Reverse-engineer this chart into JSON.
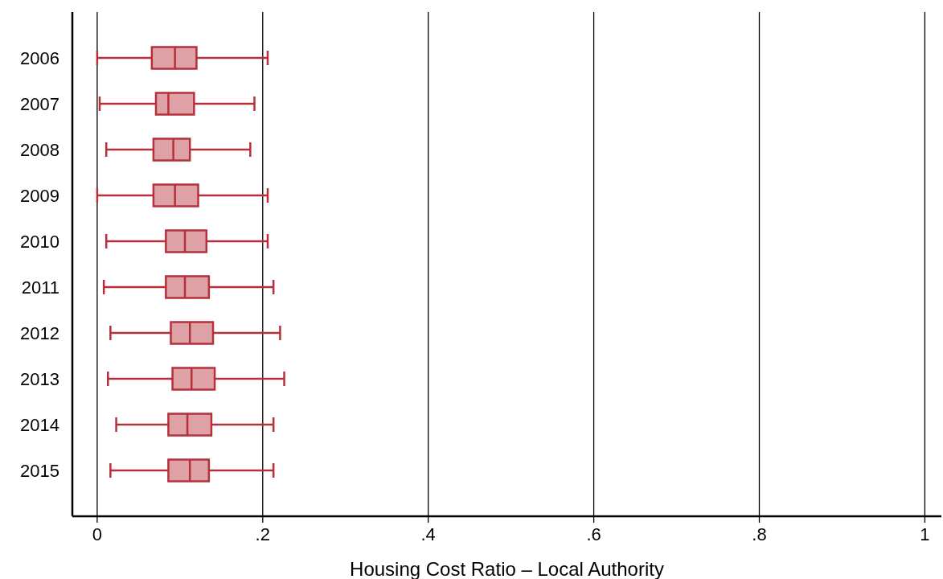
{
  "chart_data": {
    "type": "box",
    "orientation": "horizontal",
    "xlabel": "Housing Cost Ratio – Local Authority",
    "categories": [
      "2006",
      "2007",
      "2008",
      "2009",
      "2010",
      "2011",
      "2012",
      "2013",
      "2014",
      "2015"
    ],
    "color": "#b5303a",
    "boxes": [
      {
        "low": 0,
        "q1": 0.066,
        "median": 0.094,
        "q3": 0.12,
        "high": 0.206
      },
      {
        "low": 0.003,
        "q1": 0.071,
        "median": 0.086,
        "q3": 0.117,
        "high": 0.19
      },
      {
        "low": 0.011,
        "q1": 0.068,
        "median": 0.092,
        "q3": 0.112,
        "high": 0.185
      },
      {
        "low": 0,
        "q1": 0.068,
        "median": 0.094,
        "q3": 0.122,
        "high": 0.206
      },
      {
        "low": 0.011,
        "q1": 0.083,
        "median": 0.106,
        "q3": 0.132,
        "high": 0.206
      },
      {
        "low": 0.008,
        "q1": 0.083,
        "median": 0.106,
        "q3": 0.135,
        "high": 0.213
      },
      {
        "low": 0.016,
        "q1": 0.089,
        "median": 0.112,
        "q3": 0.14,
        "high": 0.221
      },
      {
        "low": 0.013,
        "q1": 0.091,
        "median": 0.114,
        "q3": 0.142,
        "high": 0.226
      },
      {
        "low": 0.023,
        "q1": 0.086,
        "median": 0.109,
        "q3": 0.138,
        "high": 0.213
      },
      {
        "low": 0.016,
        "q1": 0.086,
        "median": 0.112,
        "q3": 0.135,
        "high": 0.213
      }
    ],
    "xlim": [
      -0.03,
      1.02
    ],
    "xticks": [
      0,
      {
        "value": 0.2,
        "label": ".2"
      },
      {
        "value": 0.4,
        "label": ".4"
      },
      {
        "value": 0.6,
        "label": ".6"
      },
      {
        "value": 0.8,
        "label": ".8"
      },
      1
    ],
    "grid": "x"
  }
}
